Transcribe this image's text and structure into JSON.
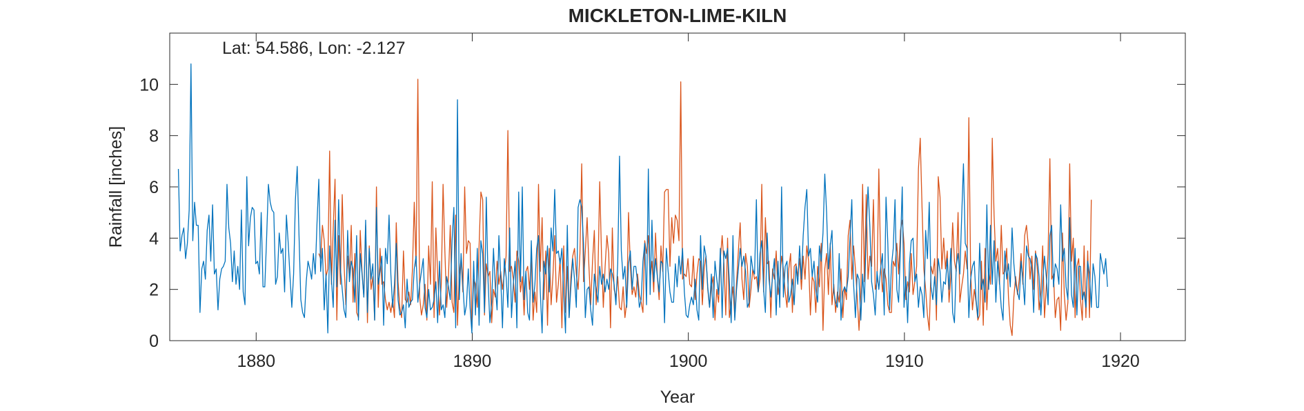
{
  "chart_data": {
    "type": "line",
    "title": "MICKLETON-LIME-KILN",
    "annotation": "Lat: 54.586, Lon: -2.127",
    "xlabel": "Year",
    "ylabel": "Rainfall [inches]",
    "xlim": [
      1876.0,
      1923.0
    ],
    "ylim": [
      0,
      12
    ],
    "x_ticks": [
      1880,
      1890,
      1900,
      1910,
      1920
    ],
    "y_ticks": [
      0,
      2,
      4,
      6,
      8,
      10
    ],
    "grid": false,
    "legend": "none",
    "colors": {
      "series_a": "#0072BD",
      "series_b": "#D95319",
      "axis": "#262626"
    },
    "series": [
      {
        "color": "#D95319",
        "x_start": 1882.9,
        "x_step": 0.08333,
        "values": [
          3.4,
          3.2,
          4.5,
          3.9,
          2.5,
          2.8,
          7.4,
          2.2,
          4.4,
          6.3,
          0.8,
          4.1,
          2.2,
          5.7,
          3.0,
          1.4,
          3.3,
          2.5,
          4.5,
          1.5,
          3.4,
          1.1,
          0.9,
          4.3,
          2.7,
          1.7,
          4.5,
          0.7,
          3.7,
          2.0,
          2.5,
          0.8,
          6.0,
          1.3,
          3.6,
          2.2,
          2.3,
          1.6,
          1.2,
          1.5,
          1.1,
          1.6,
          0.9,
          4.6,
          2.3,
          1.3,
          0.9,
          3.5,
          1.6,
          1.5,
          1.9,
          1.4,
          2.8,
          5.4,
          2.9,
          10.2,
          1.7,
          1.0,
          1.4,
          2.2,
          0.8,
          3.7,
          2.2,
          6.2,
          0.9,
          4.4,
          2.6,
          1.0,
          2.2,
          6.1,
          3.5,
          1.3,
          2.5,
          4.5,
          1.5,
          1.1,
          4.9,
          0.6,
          2.6,
          3.2,
          1.9,
          6.0,
          3.4,
          3.9,
          3.8,
          0.5,
          2.4,
          2.2,
          1.3,
          3.7,
          5.8,
          5.5,
          1.0,
          3.0,
          2.5,
          2.7,
          0.7,
          2.0,
          1.7,
          3.1,
          2.2,
          2.7,
          2.0,
          2.6,
          3.3,
          8.2,
          2.7,
          2.9,
          2.4,
          1.5,
          3.5,
          3.1,
          1.9,
          2.5,
          1.0,
          2.7,
          2.9,
          2.0,
          3.3,
          0.8,
          1.9,
          1.1,
          6.1,
          2.7,
          4.8,
          1.6,
          3.5,
          0.6,
          3.6,
          1.4,
          2.5,
          4.1,
          1.5,
          2.2,
          3.2,
          0.5,
          3.7,
          1.1,
          2.9,
          0.9,
          2.5,
          3.3,
          3.6,
          2.6,
          2.0,
          3.4,
          6.9,
          2.3,
          3.5,
          4.8,
          2.9,
          1.4,
          3.1,
          4.3,
          1.4,
          2.6,
          6.2,
          3.3,
          1.3,
          2.9,
          4.1,
          3.4,
          0.5,
          4.4,
          2.0,
          1.7,
          2.5,
          1.3,
          1.2,
          2.1,
          0.9,
          1.5,
          5.0,
          2.9,
          1.8,
          2.1,
          1.7,
          2.6,
          1.8,
          1.5,
          1.1,
          3.9,
          3.4,
          4.1,
          2.4,
          3.1,
          1.9,
          4.2,
          2.5,
          1.6,
          3.7,
          2.7,
          5.8,
          5.9,
          5.9,
          2.9,
          4.8,
          3.8,
          4.9,
          4.7,
          3.9,
          10.1,
          2.4,
          2.6,
          2.5,
          3.2,
          2.2,
          2.1,
          3.3,
          1.6,
          2.6,
          3.2,
          3.1,
          1.4,
          2.8,
          3.3,
          2.0,
          1.3,
          2.1,
          2.5,
          0.8,
          2.0,
          1.5,
          3.2,
          4.1,
          3.0,
          1.0,
          4.0,
          0.9,
          1.5,
          2.1,
          0.9,
          2.3,
          3.5,
          4.6,
          2.4,
          1.6,
          3.4,
          2.9,
          1.3,
          2.0,
          2.8,
          2.4,
          2.5,
          1.9,
          2.4,
          6.1,
          1.9,
          4.8,
          3.0,
          3.1,
          0.9,
          2.8,
          2.4,
          3.5,
          1.8,
          2.4,
          3.3,
          2.8,
          1.9,
          1.3,
          2.8,
          3.4,
          1.1,
          2.9,
          3.0,
          2.5,
          3.2,
          2.0,
          3.3,
          2.4,
          3.7,
          3.1,
          1.0,
          2.5,
          2.3,
          1.1,
          2.9,
          2.1,
          3.8,
          0.4,
          2.8,
          3.4,
          1.8,
          3.8,
          1.4,
          2.2,
          1.1,
          1.9,
          1.5,
          2.8,
          0.9,
          2.1,
          1.6,
          4.1,
          4.7,
          2.4,
          3.7,
          2.8,
          1.7,
          0.4,
          1.9,
          6.1,
          2.3,
          5.7,
          2.4,
          3.3,
          2.9,
          5.5,
          2.0,
          2.3,
          6.7,
          3.1,
          1.9,
          2.8,
          2.4,
          1.4,
          1.1,
          1.1,
          3.1,
          2.9,
          3.8,
          2.6,
          4.3,
          4.7,
          3.8,
          1.6,
          2.3,
          1.9,
          3.4,
          1.8,
          2.3,
          2.9,
          6.7,
          7.9,
          5.2,
          2.8,
          2.0,
          1.0,
          0.4,
          2.9,
          2.6,
          3.2,
          0.8,
          6.4,
          5.6,
          2.8,
          4.0,
          2.8,
          3.5,
          1.5,
          2.5,
          4.6,
          3.1,
          2.7,
          5.0,
          1.5,
          2.1,
          2.6,
          3.5,
          2.8,
          8.7,
          2.6,
          1.2,
          2.0,
          1.5,
          0.8,
          1.0,
          3.1,
          0.6,
          3.6,
          1.2,
          2.8,
          2.2,
          7.9,
          4.9,
          3.1,
          3.6,
          2.2,
          4.5,
          2.6,
          2.7,
          3.6,
          1.7,
          0.6,
          0.2,
          1.7,
          2.5,
          1.8,
          2.4,
          3.4,
          2.2,
          4.1,
          4.5,
          3.7,
          2.4,
          3.3,
          2.0,
          3.5,
          2.8,
          1.2,
          1.9,
          3.7,
          0.9,
          2.1,
          3.4,
          7.1,
          2.4,
          2.6,
          0.9,
          1.6,
          1.7,
          0.4,
          4.2,
          1.8,
          0.8,
          1.5,
          6.9,
          3.1,
          4.0,
          0.9,
          2.9,
          3.2,
          1.6,
          0.8,
          3.7,
          0.9,
          3.5,
          0.9,
          5.5
        ]
      },
      {
        "color": "#0072BD",
        "x_start": 1876.4,
        "x_step": 0.08333,
        "values": [
          6.7,
          3.5,
          4.1,
          4.4,
          3.2,
          3.8,
          5.1,
          10.8,
          3.9,
          5.4,
          4.5,
          4.5,
          1.1,
          2.8,
          3.1,
          2.4,
          4.3,
          4.9,
          3.1,
          5.3,
          2.6,
          2.8,
          1.2,
          2.4,
          2.8,
          2.9,
          3.1,
          6.1,
          4.4,
          3.8,
          2.3,
          3.5,
          2.2,
          2.9,
          2.0,
          5.1,
          1.9,
          1.4,
          6.4,
          3.7,
          4.8,
          5.2,
          5.1,
          3.0,
          3.1,
          2.6,
          5.0,
          2.1,
          2.1,
          4.0,
          6.1,
          5.4,
          5.1,
          5.0,
          2.2,
          2.5,
          4.2,
          3.4,
          3.6,
          1.9,
          4.9,
          3.8,
          2.5,
          1.3,
          2.6,
          5.5,
          6.8,
          4.1,
          1.6,
          1.1,
          0.9,
          2.3,
          3.1,
          2.8,
          2.4,
          3.4,
          2.6,
          4.6,
          6.3,
          2.7,
          3.6,
          1.2,
          2.6,
          0.3,
          3.7,
          2.4,
          1.3,
          4.7,
          2.1,
          5.5,
          2.8,
          2.0,
          1.2,
          0.9,
          4.3,
          2.3,
          3.1,
          2.8,
          1.5,
          4.1,
          0.8,
          3.4,
          2.6,
          1.7,
          4.7,
          1.1,
          3.6,
          2.4,
          3.0,
          0.8,
          5.2,
          2.2,
          2.7,
          3.3,
          0.6,
          3.6,
          3.0,
          4.9,
          2.6,
          1.3,
          2.2,
          3.8,
          1.6,
          1.0,
          1.1,
          1.4,
          0.5,
          2.4,
          1.3,
          1.5,
          1.6,
          2.8,
          3.3,
          1.5,
          2.2,
          2.7,
          3.2,
          1.3,
          0.9,
          2.0,
          1.2,
          1.3,
          1.6,
          2.3,
          0.7,
          3.1,
          1.2,
          1.4,
          0.9,
          2.5,
          2.1,
          1.6,
          3.9,
          5.2,
          0.5,
          9.4,
          1.6,
          3.4,
          2.2,
          1.0,
          1.4,
          2.8,
          1.3,
          0.3,
          3.1,
          1.0,
          3.6,
          0.6,
          3.9,
          3.4,
          1.1,
          5.6,
          2.3,
          0.7,
          1.5,
          3.6,
          2.1,
          1.2,
          4.1,
          2.5,
          0.5,
          3.2,
          2.5,
          1.3,
          4.4,
          0.9,
          2.2,
          3.1,
          0.5,
          5.8,
          2.3,
          6.0,
          1.6,
          2.7,
          1.1,
          0.8,
          3.9,
          1.5,
          2.2,
          3.6,
          4.1,
          1.9,
          0.3,
          3.1,
          2.6,
          3.7,
          1.9,
          4.4,
          3.5,
          5.9,
          3.4,
          3.5,
          3.0,
          3.6,
          1.8,
          0.3,
          4.5,
          0.9,
          2.1,
          3.2,
          2.4,
          1.3,
          5.2,
          5.5,
          5.2,
          3.8,
          0.9,
          2.0,
          2.1,
          1.2,
          0.6,
          2.6,
          2.0,
          1.5,
          2.9,
          2.2,
          2.6,
          1.9,
          2.4,
          2.0,
          2.8,
          2.6,
          2.2,
          1.4,
          3.0,
          7.2,
          3.5,
          2.4,
          2.9,
          1.3,
          3.0,
          3.5,
          2.0,
          2.9,
          2.9,
          2.3,
          1.3,
          1.6,
          3.1,
          3.8,
          1.4,
          6.7,
          1.8,
          4.7,
          2.3,
          3.2,
          2.5,
          1.9,
          3.1,
          3.0,
          0.7,
          3.6,
          2.7,
          1.9,
          1.5,
          1.5,
          3.0,
          2.1,
          3.3,
          2.6,
          3.6,
          1.9,
          1.0,
          0.9,
          1.4,
          1.7,
          1.4,
          2.4,
          1.2,
          0.8,
          4.1,
          2.0,
          3.7,
          3.3,
          2.1,
          1.3,
          2.6,
          0.9,
          3.1,
          2.4,
          1.8,
          3.6,
          0.9,
          3.5,
          3.2,
          3.6,
          2.3,
          0.7,
          4.1,
          0.8,
          2.0,
          2.8,
          3.6,
          2.9,
          3.3,
          2.7,
          1.3,
          1.5,
          3.3,
          2.8,
          2.6,
          5.5,
          1.9,
          3.4,
          3.9,
          2.0,
          1.1,
          4.2,
          2.4,
          1.7,
          2.5,
          3.2,
          1.0,
          3.1,
          1.3,
          6.0,
          1.7,
          2.9,
          3.1,
          1.5,
          1.8,
          2.4,
          1.4,
          2.9,
          2.2,
          3.7,
          2.4,
          4.1,
          5.2,
          5.9,
          3.3,
          3.6,
          2.5,
          3.1,
          2.0,
          1.5,
          3.7,
          3.1,
          4.2,
          6.5,
          5.0,
          2.8,
          3.7,
          4.3,
          1.9,
          1.5,
          1.3,
          3.4,
          0.8,
          1.9,
          2.1,
          1.9,
          2.5,
          4.0,
          5.5,
          2.2,
          0.9,
          2.6,
          2.4,
          0.8,
          2.6,
          1.5,
          4.2,
          6.0,
          4.5,
          2.3,
          1.8,
          1.0,
          2.7,
          2.0,
          2.8,
          3.4,
          1.0,
          5.6,
          3.8,
          1.2,
          2.9,
          3.6,
          5.5,
          2.0,
          1.5,
          3.6,
          6.0,
          1.3,
          2.5,
          0.7,
          3.0,
          3.9,
          4.0,
          2.3,
          2.6,
          1.3,
          2.1,
          1.8,
          0.9,
          4.3,
          3.2,
          5.4,
          2.1,
          1.6,
          2.5,
          1.4,
          3.2,
          2.7,
          1.5,
          2.3,
          2.2,
          3.2,
          2.0,
          3.6,
          1.1,
          0.7,
          2.9,
          3.4,
          2.6,
          4.8,
          6.9,
          3.8,
          3.6,
          0.9,
          2.4,
          2.9,
          3.1,
          1.6,
          0.9,
          3.8,
          2.0,
          2.4,
          1.5,
          5.3,
          2.0,
          4.5,
          2.2,
          3.9,
          1.5,
          3.1,
          2.3,
          1.3,
          0.8,
          3.5,
          2.4,
          3.0,
          2.1,
          4.4,
          3.0,
          2.2,
          1.9,
          1.6,
          3.1,
          2.4,
          1.4,
          3.7,
          3.3,
          3.2,
          2.8,
          1.1,
          3.4,
          3.2,
          2.5,
          1.0,
          2.3,
          3.3,
          2.5,
          1.4,
          4.1,
          4.5,
          2.1,
          3.0,
          2.8,
          2.2,
          5.3,
          3.1,
          3.6,
          2.1,
          1.6,
          4.8,
          1.8,
          1.3,
          3.6,
          1.0,
          2.9,
          2.9,
          1.6,
          1.9,
          1.3,
          3.1,
          2.6,
          1.3,
          3.0,
          2.5,
          1.3,
          1.3,
          3.4,
          3.0,
          2.6,
          3.2,
          2.1
        ]
      }
    ]
  }
}
